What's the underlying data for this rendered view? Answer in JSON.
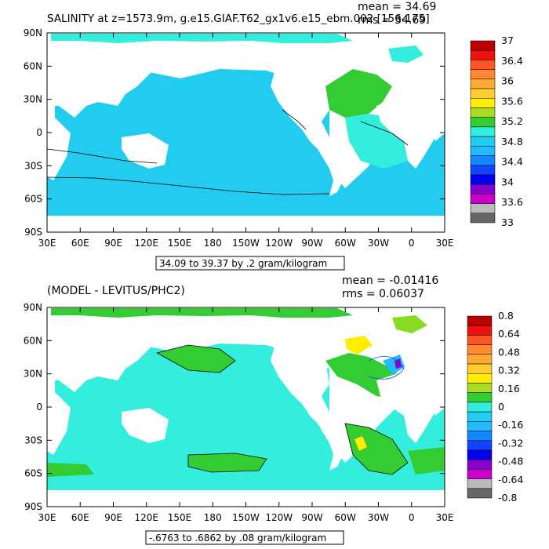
{
  "colors": {
    "ocean_cyan": "#33eedd",
    "ocean_lightblue": "#22ccee",
    "green": "#33cc33",
    "light_green": "#88dd22",
    "yellow": "#ffee00",
    "land": "#ffffff",
    "frame": "#000000"
  },
  "chart_data": [
    {
      "type": "heatmap",
      "title": "SALINITY at z=1573.9m, g.e15.GIAF.T62_gx1v6.e15_ebm.002 [156-175]",
      "stats": [
        "mean = 34.69",
        "rms = 34.69"
      ],
      "x_ticks": [
        "30E",
        "60E",
        "90E",
        "120E",
        "150E",
        "180",
        "150W",
        "120W",
        "90W",
        "60W",
        "30W",
        "0",
        "30E"
      ],
      "y_ticks": [
        "90N",
        "60N",
        "30N",
        "0",
        "30S",
        "60S",
        "90S"
      ],
      "contour_info": "34.09 to 39.37 by .2 gram/kilogram",
      "colorbar": {
        "labels": [
          "37",
          "36.4",
          "36",
          "35.6",
          "35.2",
          "34.8",
          "34.4",
          "34",
          "33.6",
          "33"
        ],
        "colors": [
          "#bb0000",
          "#ee1111",
          "#ff5522",
          "#ff8833",
          "#ffaa33",
          "#ffcc33",
          "#ffee00",
          "#aadd22",
          "#33cc33",
          "#33eedd",
          "#22ccee",
          "#22bbff",
          "#1188ff",
          "#1144ff",
          "#0000ee",
          "#8800cc",
          "#cc00cc",
          "#bbbbbb",
          "#666666"
        ]
      }
    },
    {
      "type": "heatmap",
      "title": "(MODEL - LEVITUS/PHC2)",
      "stats": [
        "mean = -0.01416",
        "rms = 0.06037"
      ],
      "x_ticks": [
        "30E",
        "60E",
        "90E",
        "120E",
        "150E",
        "180",
        "150W",
        "120W",
        "90W",
        "60W",
        "30W",
        "0",
        "30E"
      ],
      "y_ticks": [
        "90N",
        "60N",
        "30N",
        "0",
        "30S",
        "60S",
        "90S"
      ],
      "contour_info": "-.6763 to .6862 by .08 gram/kilogram",
      "colorbar": {
        "labels": [
          "0.8",
          "0.64",
          "0.48",
          "0.32",
          "0.16",
          "0",
          "-0.16",
          "-0.32",
          "-0.48",
          "-0.64",
          "-0.8"
        ],
        "colors": [
          "#bb0000",
          "#ee1111",
          "#ff5522",
          "#ff8833",
          "#ffaa33",
          "#ffcc33",
          "#ffee00",
          "#aadd22",
          "#33cc33",
          "#33eedd",
          "#22ccee",
          "#22bbff",
          "#1188ff",
          "#1144ff",
          "#0000ee",
          "#8800cc",
          "#cc00cc",
          "#bbbbbb",
          "#666666"
        ]
      }
    }
  ]
}
